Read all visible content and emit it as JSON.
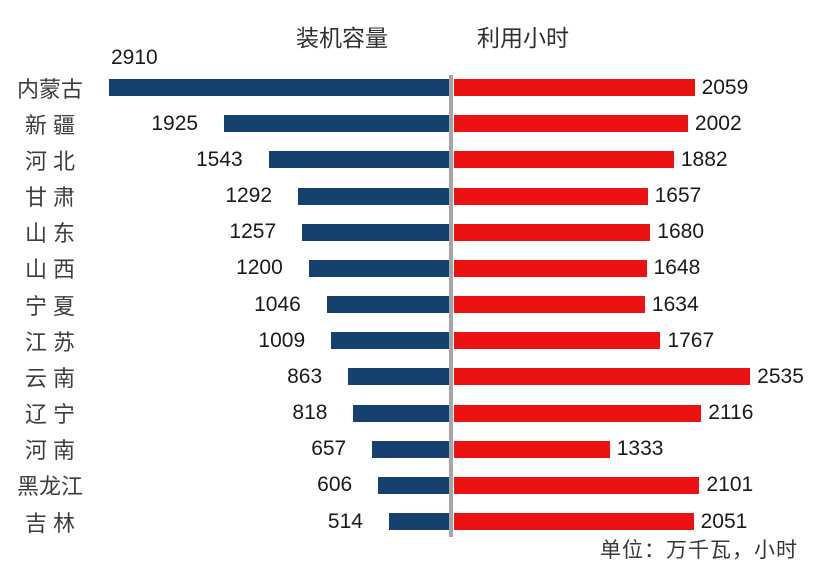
{
  "headers": {
    "capacity": "装机容量",
    "hours": "利用小时"
  },
  "footer": {
    "unit_note": "单位：万千瓦，小时"
  },
  "colors": {
    "capacity_bar": "#16406E",
    "hours_bar": "#EC1212",
    "divider": "#A6A6A6",
    "background": "#FFFFFF"
  },
  "chart_data": {
    "type": "bar",
    "subtype": "butterfly",
    "orientation": "horizontal",
    "title": "",
    "categories": [
      "内蒙古",
      "新 疆",
      "河 北",
      "甘 肃",
      "山 东",
      "山 西",
      "宁 夏",
      "江 苏",
      "云 南",
      "辽 宁",
      "河 南",
      "黑龙江",
      "吉 林"
    ],
    "series": [
      {
        "name": "装机容量",
        "direction": "left",
        "color": "#16406E",
        "values": [
          2910,
          1925,
          1543,
          1292,
          1257,
          1200,
          1046,
          1009,
          863,
          818,
          657,
          606,
          514
        ]
      },
      {
        "name": "利用小时",
        "direction": "right",
        "color": "#EC1212",
        "values": [
          2059,
          2002,
          1882,
          1657,
          1680,
          1648,
          1634,
          1767,
          2535,
          2116,
          1333,
          2101,
          2051
        ]
      }
    ],
    "value_labels": "outside-end",
    "axes": "none",
    "gridlines": false,
    "legend": "series-names-shown-as-top-text",
    "unit_note": "单位：万千瓦，小时",
    "xlim_left": [
      0,
      2910
    ],
    "xlim_right": [
      0,
      2535
    ]
  }
}
